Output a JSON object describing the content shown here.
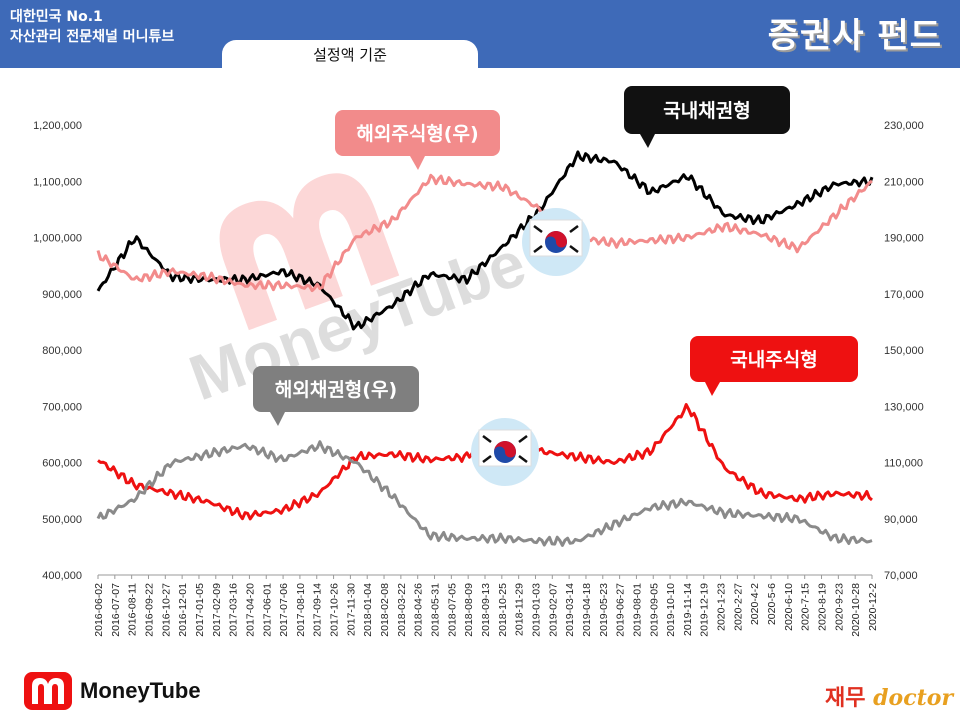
{
  "header": {
    "brand_line1": "대한민국 No.1",
    "brand_line2": "자산관리 전문채널 머니튜브",
    "title": "증권사 펀드",
    "subtitle_tab": "설정액 기준"
  },
  "footer": {
    "left_brand": "MoneyTube",
    "right_brand_1": "재무",
    "right_brand_2": "doctor"
  },
  "watermark": {
    "text": "MoneyTube"
  },
  "colors": {
    "header_bg": "#3e6ab8",
    "domestic_bond": "#000000",
    "overseas_equity": "#f28b8b",
    "domestic_equity": "#ee1111",
    "overseas_bond": "#8a8a8a"
  },
  "chart_data": {
    "type": "line",
    "x": [
      "2016-06-02",
      "2016-08-11",
      "2016-12-01",
      "2017-02-09",
      "2017-04-20",
      "2017-08-10",
      "2017-11-30",
      "2018-03-22",
      "2018-05-31",
      "2018-09-13",
      "2018-11-29",
      "2019-02-07",
      "2019-04-18",
      "2019-06-27",
      "2019-09-05",
      "2019-11-14",
      "2020-1-23",
      "2020-4-2",
      "2020-6-10",
      "2020-8-19",
      "2020-10-28",
      "2020-12-2"
    ],
    "x_tick_labels": [
      "2016-06-02",
      "2016-07-07",
      "2016-08-11",
      "2016-09-22",
      "2016-10-27",
      "2016-12-01",
      "2017-01-05",
      "2017-02-09",
      "2017-03-16",
      "2017-04-20",
      "2017-06-01",
      "2017-07-06",
      "2017-08-10",
      "2017-09-14",
      "2017-10-26",
      "2017-11-30",
      "2018-01-04",
      "2018-02-08",
      "2018-03-22",
      "2018-04-26",
      "2018-05-31",
      "2018-07-05",
      "2018-08-09",
      "2018-09-13",
      "2018-10-25",
      "2018-11-29",
      "2019-01-03",
      "2019-02-07",
      "2019-03-14",
      "2019-04-18",
      "2019-05-23",
      "2019-06-27",
      "2019-08-01",
      "2019-09-05",
      "2019-10-10",
      "2019-11-14",
      "2019-12-19",
      "2020-1-23",
      "2020-2-27",
      "2020-4-2",
      "2020-5-6",
      "2020-6-10",
      "2020-7-15",
      "2020-8-19",
      "2020-9-23",
      "2020-10-28",
      "2020-12-2"
    ],
    "y_left": {
      "ticks": [
        "400,000",
        "500,000",
        "600,000",
        "700,000",
        "800,000",
        "900,000",
        "1,000,000",
        "1,100,000",
        "1,200,000"
      ],
      "ylim": [
        400000,
        1200000
      ]
    },
    "y_right": {
      "ticks": [
        "70,000",
        "90,000",
        "110,000",
        "130,000",
        "150,000",
        "170,000",
        "190,000",
        "210,000",
        "230,000"
      ],
      "ylim": [
        70000,
        230000
      ]
    },
    "series": [
      {
        "name": "국내채권형",
        "axis": "left",
        "color": "#000000",
        "values": [
          905000,
          1000000,
          930000,
          925000,
          925000,
          940000,
          915000,
          840000,
          880000,
          935000,
          925000,
          985000,
          1050000,
          1145000,
          1135000,
          1080000,
          1110000,
          1040000,
          1030000,
          1060000,
          1095000,
          1100000
        ]
      },
      {
        "name": "해외주식형(우)",
        "axis": "right",
        "color": "#f28b8b",
        "values": [
          184000,
          175000,
          178000,
          176000,
          173000,
          173000,
          172000,
          190000,
          196000,
          211000,
          209000,
          208000,
          200000,
          190000,
          188000,
          189000,
          190000,
          194000,
          191000,
          186000,
          198000,
          210000
        ]
      },
      {
        "name": "국내주식형",
        "axis": "left",
        "color": "#ee1111",
        "values": [
          605000,
          560000,
          545000,
          530000,
          505000,
          515000,
          545000,
          610000,
          615000,
          605000,
          610000,
          675000,
          620000,
          610000,
          600000,
          620000,
          700000,
          590000,
          545000,
          535000,
          545000,
          540000
        ]
      },
      {
        "name": "해외채권형(우)",
        "axis": "right",
        "color": "#8a8a8a",
        "values": [
          90000,
          97000,
          110000,
          113000,
          116000,
          111000,
          116000,
          110000,
          98000,
          84000,
          83000,
          83000,
          82000,
          82000,
          88000,
          94000,
          96000,
          92000,
          91000,
          90000,
          83000,
          82000
        ]
      }
    ],
    "callouts": [
      {
        "text": "해외주식형(우)",
        "bg": "#f28b8b",
        "fg": "#ffffff"
      },
      {
        "text": "국내채권형",
        "bg": "#111111",
        "fg": "#ffffff"
      },
      {
        "text": "해외채권형(우)",
        "bg": "#7f7f7f",
        "fg": "#ffffff"
      },
      {
        "text": "국내주식형",
        "bg": "#ee1111",
        "fg": "#ffffff"
      }
    ]
  }
}
